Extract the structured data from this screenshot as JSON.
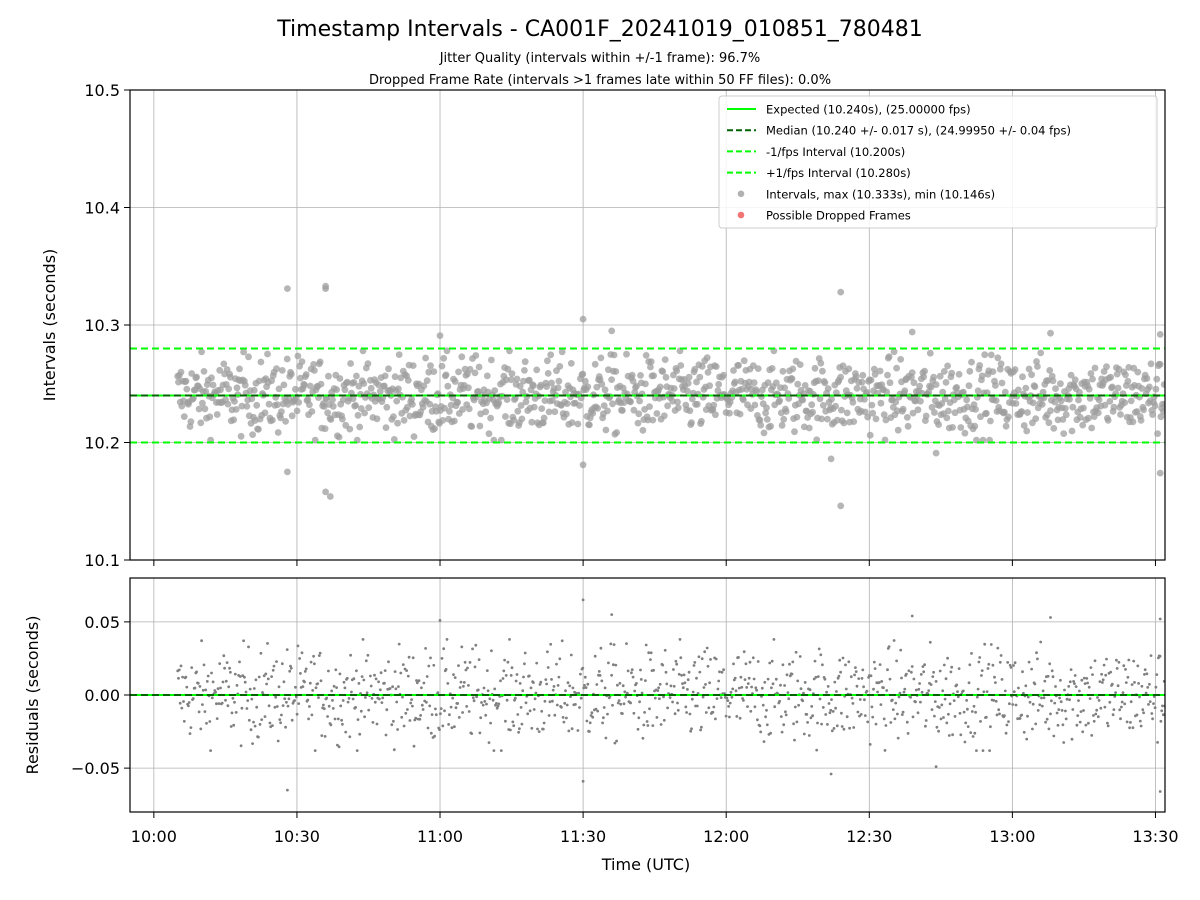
{
  "chart_data": [
    {
      "type": "scatter",
      "title": "Timestamp Intervals - CA001F_20241019_010851_780481",
      "subtitle_lines": [
        "Jitter Quality (intervals within +/-1 frame): 96.7%",
        "Dropped Frame Rate (intervals >1 frames late within 50 FF files): 0.0%"
      ],
      "ylabel": "Intervals (seconds)",
      "xlabel": "",
      "ylim": [
        10.1,
        10.5
      ],
      "xlim": [
        "09:55",
        "13:32"
      ],
      "y_ticks": [
        "10.1",
        "10.2",
        "10.3",
        "10.4",
        "10.5"
      ],
      "y_tick_values": [
        10.1,
        10.2,
        10.3,
        10.4,
        10.5
      ],
      "grid": true,
      "legend_position": "upper right",
      "reference_lines": [
        {
          "name": "Expected (10.240s), (25.00000 fps)",
          "y": 10.24,
          "style": "solid",
          "color": "#00ff00"
        },
        {
          "name": "Median (10.240 +/- 0.017 s), (24.99950 +/- 0.04 fps)",
          "y": 10.24,
          "style": "dashed",
          "color": "#006400"
        },
        {
          "name": "-1/fps Interval (10.200s)",
          "y": 10.2,
          "style": "dashed",
          "color": "#00ff00"
        },
        {
          "name": "+1/fps Interval (10.280s)",
          "y": 10.28,
          "style": "dashed",
          "color": "#00ff00"
        }
      ],
      "series": [
        {
          "name": "Intervals, max (10.333s), min (10.146s)",
          "color": "#9e9e9e",
          "center": 10.24,
          "spread": 0.017,
          "count": 1200
        },
        {
          "name": "Possible Dropped Frames",
          "color": "#ef5350",
          "values": []
        }
      ],
      "outliers": [
        {
          "x": "10:28",
          "y": 10.331
        },
        {
          "x": "10:28",
          "y": 10.175
        },
        {
          "x": "10:36",
          "y": 10.331
        },
        {
          "x": "10:36",
          "y": 10.333
        },
        {
          "x": "10:36",
          "y": 10.158
        },
        {
          "x": "10:37",
          "y": 10.154
        },
        {
          "x": "11:00",
          "y": 10.291
        },
        {
          "x": "11:30",
          "y": 10.305
        },
        {
          "x": "11:30",
          "y": 10.181
        },
        {
          "x": "11:36",
          "y": 10.295
        },
        {
          "x": "12:24",
          "y": 10.328
        },
        {
          "x": "12:24",
          "y": 10.146
        },
        {
          "x": "12:22",
          "y": 10.186
        },
        {
          "x": "12:39",
          "y": 10.294
        },
        {
          "x": "12:44",
          "y": 10.191
        },
        {
          "x": "13:08",
          "y": 10.293
        },
        {
          "x": "13:31",
          "y": 10.174
        },
        {
          "x": "13:31",
          "y": 10.292
        }
      ]
    },
    {
      "type": "scatter",
      "ylabel": "Residuals (seconds)",
      "xlabel": "Time (UTC)",
      "ylim": [
        -0.08,
        0.08
      ],
      "y_ticks": [
        "−0.05",
        "0.00",
        "0.05"
      ],
      "y_tick_values": [
        -0.05,
        0.0,
        0.05
      ],
      "x_ticks": [
        "10:00",
        "10:30",
        "11:00",
        "11:30",
        "12:00",
        "12:30",
        "13:00",
        "13:30"
      ],
      "grid": true,
      "reference_lines": [
        {
          "y": 0.0,
          "style": "solid",
          "color": "#00ff00"
        },
        {
          "y": 0.0,
          "style": "dashed",
          "color": "#006400"
        }
      ],
      "series": [
        {
          "name": "Residuals",
          "color": "#808080",
          "center": 0.0,
          "spread": 0.017,
          "count": 1200
        }
      ]
    }
  ]
}
